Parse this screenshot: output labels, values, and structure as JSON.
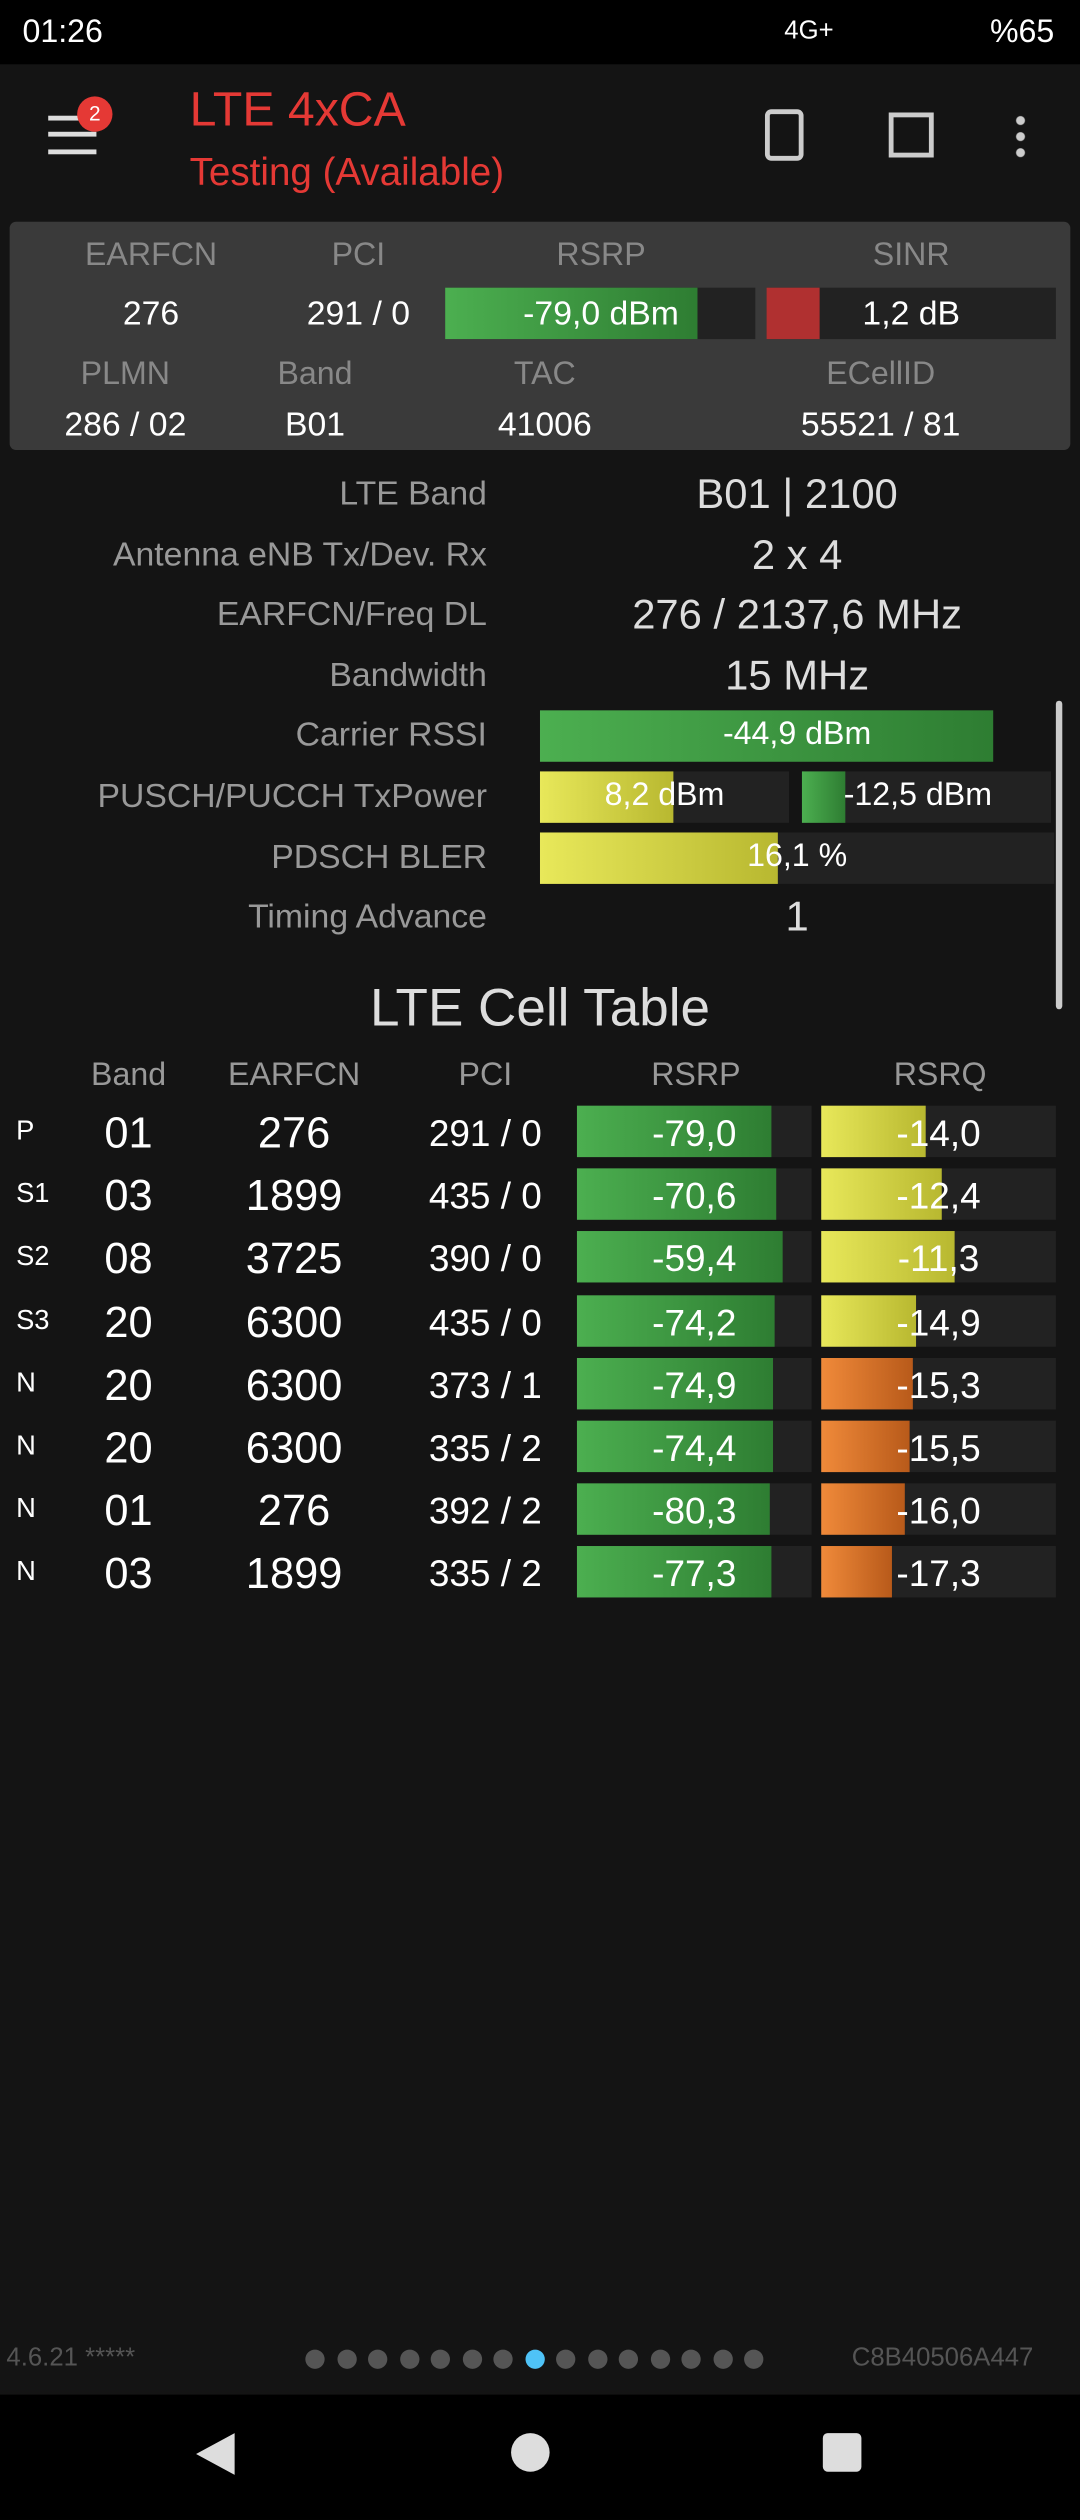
{
  "status": {
    "time": "01:26",
    "network": "4G+",
    "battery": "%65"
  },
  "header": {
    "title": "LTE 4xCA",
    "subtitle": "Testing (Available)",
    "badge": "2"
  },
  "summary": {
    "labels": [
      "EARFCN",
      "PCI",
      "RSRP",
      "SINR"
    ],
    "values": [
      "276",
      "291 / 0",
      "-79,0 dBm",
      "1,2 dB"
    ],
    "labels2": [
      "PLMN",
      "Band",
      "TAC",
      "ECellID"
    ],
    "values2": [
      "286 / 02",
      "B01",
      "41006",
      "55521 / 81"
    ]
  },
  "details": [
    {
      "label": "LTE Band",
      "value": "B01 | 2100"
    },
    {
      "label": "Antenna eNB Tx/Dev. Rx",
      "value": "2 x 4"
    },
    {
      "label": "EARFCN/Freq DL",
      "value": "276 / 2137,6 MHz"
    },
    {
      "label": "Bandwidth",
      "value": "15 MHz"
    },
    {
      "label": "Carrier RSSI",
      "value": "-44,9 dBm"
    },
    {
      "label": "PUSCH/PUCCH TxPower",
      "value": "8,2 dBm",
      "value2": "-12,5 dBm"
    },
    {
      "label": "PDSCH BLER",
      "value": "16,1 %"
    },
    {
      "label": "Timing Advance",
      "value": "1"
    }
  ],
  "cell_table": {
    "title": "LTE Cell Table",
    "headers": [
      "Band",
      "EARFCN",
      "PCI",
      "RSRP",
      "RSRQ"
    ],
    "rows": [
      [
        "P",
        "01",
        "276",
        "291 / 0",
        "-79,0",
        "-14,0"
      ],
      [
        "S1",
        "03",
        "1899",
        "435 / 0",
        "-70,6",
        "-12,4"
      ],
      [
        "S2",
        "08",
        "3725",
        "390 / 0",
        "-59,4",
        "-11,3"
      ],
      [
        "S3",
        "20",
        "6300",
        "435 / 0",
        "-74,2",
        "-14,9"
      ],
      [
        "N",
        "20",
        "6300",
        "373 / 1",
        "-74,9",
        "-15,3"
      ],
      [
        "N",
        "20",
        "6300",
        "335 / 2",
        "-74,4",
        "-15,5"
      ],
      [
        "N",
        "01",
        "276",
        "392 / 2",
        "-80,3",
        "-16,0"
      ],
      [
        "N",
        "03",
        "1899",
        "335 / 2",
        "-77,3",
        "-17,3"
      ]
    ]
  },
  "footer": {
    "version": "4.6.21 *****",
    "device_id": "C8B40506A447"
  }
}
